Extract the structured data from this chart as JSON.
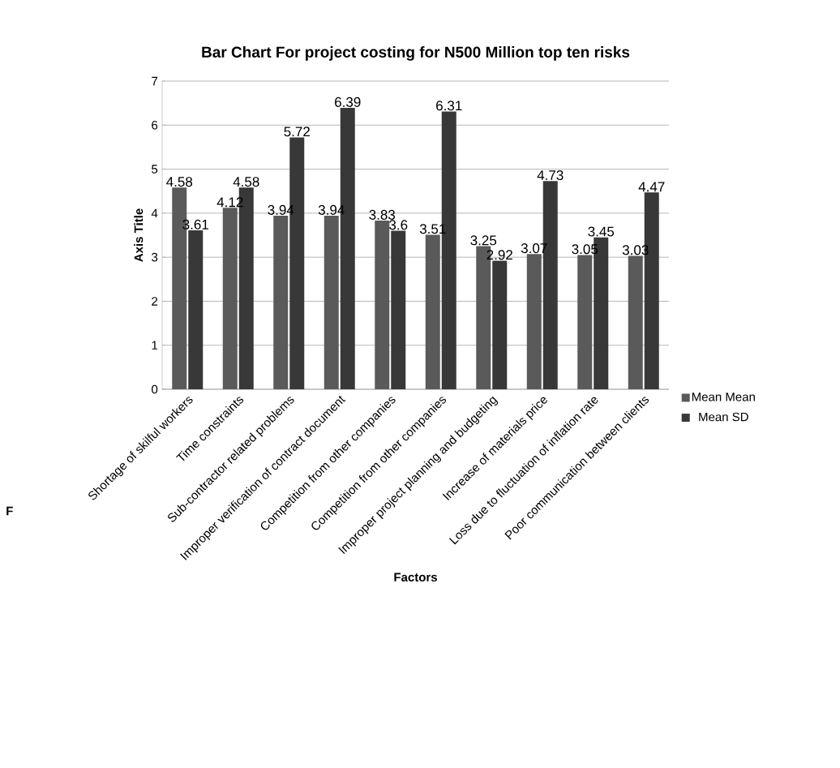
{
  "chart_data": {
    "type": "bar",
    "title": "Bar Chart For project costing for N500 Million top ten risks",
    "xlabel": "Factors",
    "ylabel": "Axis Title",
    "categories": [
      "Shortage of skilful workers",
      "Time constraints",
      "Sub-contractor related problems",
      "Improper verification  of contract document",
      "Competition from other companies",
      "Competition from other companies",
      "Improper project planning and budgeting",
      "Increase of materials price",
      "Loss due to fluctuation of inflation rate",
      "Poor communication between clients"
    ],
    "series": [
      {
        "name": "Mean Mean",
        "color": "#5a5a5a",
        "values": [
          4.58,
          4.12,
          3.94,
          3.94,
          3.83,
          3.51,
          3.25,
          3.07,
          3.05,
          3.03
        ]
      },
      {
        "name": "Mean SD",
        "color": "#383838",
        "values": [
          3.61,
          4.58,
          5.72,
          6.39,
          3.6,
          6.31,
          2.92,
          4.73,
          3.45,
          4.47
        ]
      }
    ],
    "ylim": [
      0,
      7
    ],
    "yticks": [
      0,
      1,
      2,
      3,
      4,
      5,
      6,
      7
    ],
    "grid": "y",
    "legend": "right",
    "data_labels": true,
    "annotations": [
      "F"
    ]
  }
}
